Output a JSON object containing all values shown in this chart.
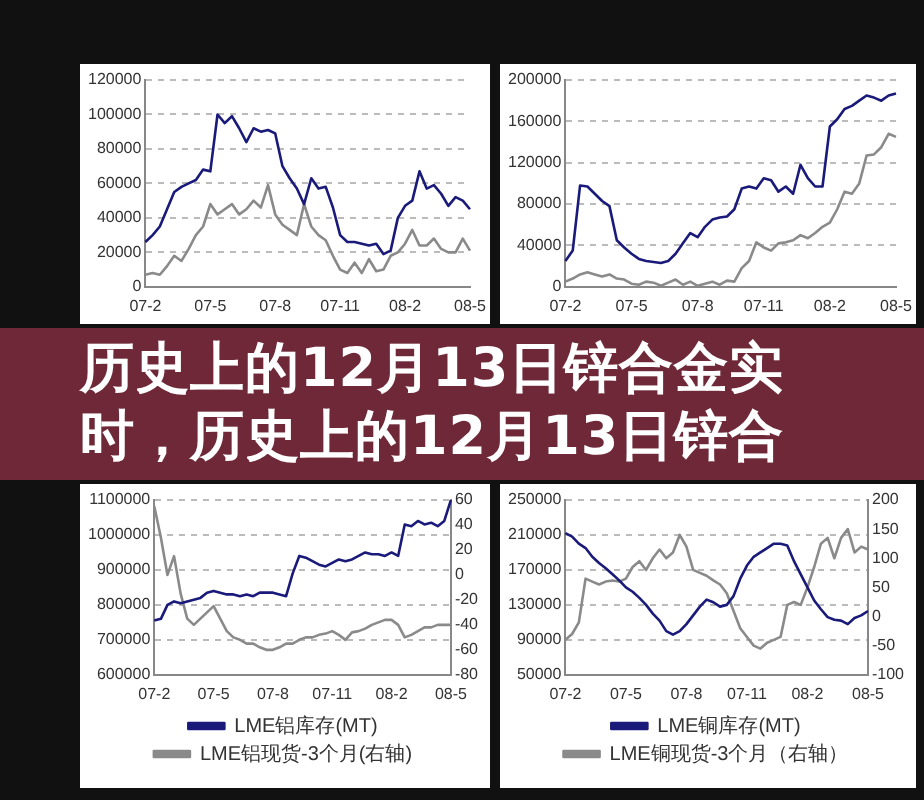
{
  "chart_data": [
    {
      "type": "line",
      "title": "历史上的12月13日锌合金实时，历史上的12月13日锌合",
      "marker": "none",
      "grid": "y",
      "legend": false,
      "categories": [
        "07-2",
        null,
        null,
        null,
        null,
        null,
        null,
        null,
        null,
        "07-5",
        null,
        null,
        null,
        null,
        null,
        null,
        null,
        null,
        "07-8",
        null,
        null,
        null,
        null,
        null,
        null,
        null,
        null,
        "07-11",
        null,
        null,
        null,
        null,
        null,
        null,
        null,
        null,
        "08-2",
        null,
        null,
        null,
        null,
        null,
        null,
        null,
        null,
        "08-5"
      ],
      "ylim": [
        0,
        120000
      ],
      "yticks": [
        0,
        20000,
        40000,
        60000,
        80000,
        100000,
        120000
      ],
      "series": [
        {
          "color": "#1a1a7a",
          "values": [
            26000,
            30000,
            35000,
            45000,
            55000,
            58000,
            60000,
            62000,
            68000,
            67000,
            100000,
            95000,
            99000,
            92000,
            84000,
            92000,
            90000,
            91000,
            89000,
            70000,
            63000,
            57000,
            48000,
            63000,
            57000,
            58000,
            46000,
            30000,
            26000,
            26000,
            25000,
            24000,
            25000,
            19000,
            21000,
            40000,
            47000,
            50000,
            67000,
            57000,
            59000,
            54000,
            47000,
            52000,
            50000,
            45000
          ]
        },
        {
          "color": "#8a8a8a",
          "values": [
            7000,
            8000,
            7000,
            12000,
            18000,
            15000,
            22000,
            30000,
            35000,
            48000,
            42000,
            45000,
            48000,
            42000,
            45000,
            50000,
            46000,
            59000,
            42000,
            36000,
            33000,
            30000,
            48000,
            35000,
            30000,
            27000,
            18000,
            10000,
            8000,
            14000,
            8000,
            16000,
            9000,
            10000,
            18000,
            20000,
            25000,
            33000,
            24000,
            24000,
            28000,
            22000,
            20000,
            20000,
            28000,
            21000
          ]
        }
      ]
    },
    {
      "type": "line",
      "marker": "none",
      "grid": "y",
      "legend": false,
      "categories": [
        "07-2",
        null,
        null,
        null,
        null,
        null,
        null,
        null,
        null,
        "07-5",
        null,
        null,
        null,
        null,
        null,
        null,
        null,
        null,
        "07-8",
        null,
        null,
        null,
        null,
        null,
        null,
        null,
        null,
        "07-11",
        null,
        null,
        null,
        null,
        null,
        null,
        null,
        null,
        "08-2",
        null,
        null,
        null,
        null,
        null,
        null,
        null,
        null,
        "08-5"
      ],
      "ylim": [
        0,
        200000
      ],
      "yticks": [
        0,
        40000,
        80000,
        120000,
        160000,
        200000
      ],
      "series": [
        {
          "color": "#1a1a7a",
          "values": [
            25000,
            35000,
            98000,
            97000,
            90000,
            83000,
            78000,
            45000,
            38000,
            32000,
            27000,
            25000,
            24000,
            23000,
            25000,
            32000,
            42000,
            52000,
            48000,
            58000,
            65000,
            67000,
            68000,
            75000,
            95000,
            97000,
            95000,
            105000,
            103000,
            92000,
            97000,
            90000,
            118000,
            105000,
            97000,
            97000,
            155000,
            162000,
            172000,
            175000,
            180000,
            185000,
            183000,
            180000,
            185000,
            187000
          ]
        },
        {
          "color": "#8a8a8a",
          "values": [
            5000,
            8000,
            12000,
            14000,
            12000,
            10000,
            12000,
            8000,
            7000,
            3000,
            2000,
            5000,
            4000,
            1000,
            4000,
            7000,
            2000,
            5000,
            1000,
            3000,
            5000,
            2000,
            6000,
            5000,
            18000,
            25000,
            43000,
            38000,
            35000,
            42000,
            43000,
            45000,
            50000,
            47000,
            52000,
            58000,
            62000,
            75000,
            92000,
            90000,
            100000,
            127000,
            128000,
            135000,
            148000,
            145000
          ]
        }
      ]
    },
    {
      "type": "line",
      "marker": "none",
      "grid": "y",
      "legend": "bottom",
      "categories": [
        "07-2",
        null,
        null,
        null,
        null,
        null,
        null,
        null,
        null,
        "07-5",
        null,
        null,
        null,
        null,
        null,
        null,
        null,
        null,
        "07-8",
        null,
        null,
        null,
        null,
        null,
        null,
        null,
        null,
        "07-11",
        null,
        null,
        null,
        null,
        null,
        null,
        null,
        null,
        "08-2",
        null,
        null,
        null,
        null,
        null,
        null,
        null,
        null,
        "08-5"
      ],
      "ylim": [
        600000,
        1100000
      ],
      "yticks": [
        600000,
        700000,
        800000,
        900000,
        1000000,
        1100000
      ],
      "y2lim": [
        -80,
        60
      ],
      "y2ticks": [
        -80,
        -60,
        -40,
        -20,
        0,
        20,
        40,
        60
      ],
      "series": [
        {
          "name": "LME铝库存(MT)",
          "color": "#1a1a7a",
          "values": [
            755000,
            760000,
            800000,
            810000,
            805000,
            810000,
            815000,
            820000,
            835000,
            840000,
            835000,
            830000,
            830000,
            825000,
            830000,
            825000,
            835000,
            835000,
            835000,
            830000,
            825000,
            890000,
            940000,
            935000,
            925000,
            915000,
            910000,
            920000,
            930000,
            925000,
            930000,
            940000,
            950000,
            945000,
            945000,
            940000,
            950000,
            940000,
            1030000,
            1025000,
            1040000,
            1030000,
            1035000,
            1025000,
            1040000,
            1100000
          ]
        },
        {
          "name": "LME铝现货-3个月(右轴)",
          "color": "#8a8a8a",
          "axis": "y2",
          "values": [
            55,
            30,
            0,
            15,
            -15,
            -35,
            -40,
            -35,
            -30,
            -25,
            -35,
            -45,
            -50,
            -52,
            -55,
            -55,
            -58,
            -60,
            -60,
            -58,
            -55,
            -55,
            -52,
            -50,
            -50,
            -48,
            -47,
            -45,
            -48,
            -52,
            -46,
            -45,
            -43,
            -40,
            -38,
            -36,
            -36,
            -40,
            -50,
            -48,
            -45,
            -42,
            -42,
            -40,
            -40,
            -40
          ]
        }
      ]
    },
    {
      "type": "line",
      "marker": "none",
      "grid": "y",
      "legend": "bottom",
      "categories": [
        "07-2",
        null,
        null,
        null,
        null,
        null,
        null,
        null,
        null,
        "07-5",
        null,
        null,
        null,
        null,
        null,
        null,
        null,
        null,
        "07-8",
        null,
        null,
        null,
        null,
        null,
        null,
        null,
        null,
        "07-11",
        null,
        null,
        null,
        null,
        null,
        null,
        null,
        null,
        "08-2",
        null,
        null,
        null,
        null,
        null,
        null,
        null,
        null,
        "08-5"
      ],
      "ylim": [
        50000,
        250000
      ],
      "yticks": [
        50000,
        90000,
        130000,
        170000,
        210000,
        250000
      ],
      "y2lim": [
        -100,
        200
      ],
      "y2ticks": [
        -100,
        -50,
        0,
        50,
        100,
        150,
        200
      ],
      "series": [
        {
          "name": "LME铜库存(MT)",
          "color": "#1a1a7a",
          "values": [
            212000,
            208000,
            200000,
            195000,
            185000,
            178000,
            172000,
            165000,
            158000,
            150000,
            145000,
            138000,
            130000,
            120000,
            112000,
            100000,
            96000,
            100000,
            108000,
            118000,
            128000,
            136000,
            133000,
            128000,
            130000,
            140000,
            160000,
            175000,
            185000,
            190000,
            195000,
            200000,
            200000,
            198000,
            180000,
            165000,
            150000,
            135000,
            125000,
            116000,
            113000,
            112000,
            108000,
            115000,
            118000,
            123000
          ]
        },
        {
          "name": "LME铜现货-3个月（右轴）",
          "color": "#8a8a8a",
          "axis": "y2",
          "values": [
            -40,
            -30,
            -10,
            65,
            60,
            55,
            60,
            62,
            60,
            65,
            85,
            95,
            80,
            100,
            115,
            100,
            110,
            140,
            120,
            80,
            75,
            70,
            62,
            55,
            40,
            10,
            -20,
            -35,
            -50,
            -55,
            -45,
            -40,
            -35,
            20,
            25,
            20,
            50,
            85,
            125,
            135,
            100,
            135,
            150,
            110,
            120,
            115
          ]
        }
      ]
    }
  ]
}
